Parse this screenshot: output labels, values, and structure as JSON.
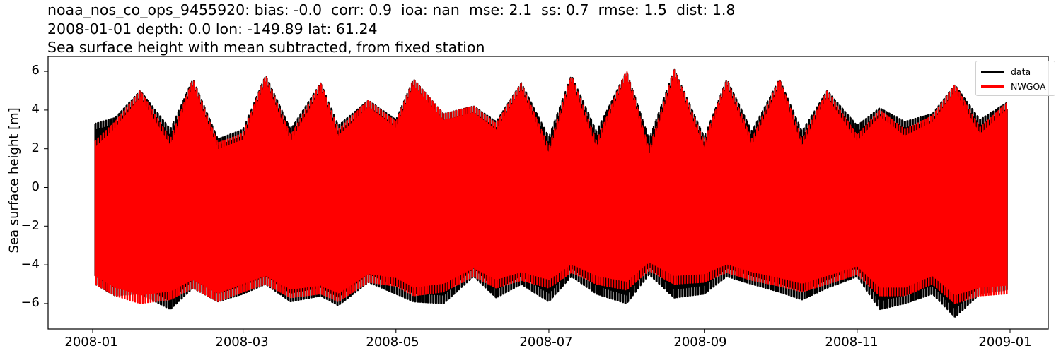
{
  "title": {
    "line1": "noaa_nos_co_ops_9455920: bias: -0.0  corr: 0.9  ioa: nan  mse: 2.1  ss: 0.7  rmse: 1.5  dist: 1.8",
    "line2": "2008-01-01 depth: 0.0 lon: -149.89 lat: 61.24",
    "line3": "Sea surface height with mean subtracted, from fixed station"
  },
  "axes": {
    "ylabel": "Sea surface height [m]",
    "yticks": [
      "6",
      "4",
      "2",
      "0",
      "−2",
      "−4",
      "−6"
    ],
    "xticks": [
      "2008-01",
      "2008-03",
      "2008-05",
      "2008-07",
      "2008-09",
      "2008-11",
      "2009-01"
    ]
  },
  "legend": {
    "items": [
      {
        "label": "data",
        "color": "#000000"
      },
      {
        "label": "NWGOA",
        "color": "#ff0000"
      }
    ]
  },
  "chart_data": {
    "type": "line",
    "title": "noaa_nos_co_ops_9455920: bias: -0.0  corr: 0.9  ioa: nan  mse: 2.1  ss: 0.7  rmse: 1.5  dist: 1.8 / 2008-01-01 depth: 0.0 lon: -149.89 lat: 61.24 / Sea surface height with mean subtracted, from fixed station",
    "xlabel": "",
    "ylabel": "Sea surface height [m]",
    "xlim": [
      "2007-12-15",
      "2009-01-15"
    ],
    "ylim": [
      -7.2,
      6.7
    ],
    "yticks": [
      -6,
      -4,
      -2,
      0,
      2,
      4,
      6
    ],
    "xticks": [
      "2008-01",
      "2008-03",
      "2008-05",
      "2008-07",
      "2008-09",
      "2008-11",
      "2009-01"
    ],
    "grid": false,
    "legend_position": "upper right",
    "x_dates_envelope": [
      "2008-01-02",
      "2008-01-10",
      "2008-01-20",
      "2008-02-01",
      "2008-02-10",
      "2008-02-20",
      "2008-03-01",
      "2008-03-10",
      "2008-03-20",
      "2008-04-01",
      "2008-04-08",
      "2008-04-20",
      "2008-05-01",
      "2008-05-08",
      "2008-05-20",
      "2008-06-01",
      "2008-06-10",
      "2008-06-20",
      "2008-07-01",
      "2008-07-10",
      "2008-07-20",
      "2008-08-01",
      "2008-08-10",
      "2008-08-20",
      "2008-09-01",
      "2008-09-10",
      "2008-09-20",
      "2008-10-01",
      "2008-10-10",
      "2008-10-20",
      "2008-11-01",
      "2008-11-10",
      "2008-11-20",
      "2008-12-01",
      "2008-12-10",
      "2008-12-20",
      "2008-12-31"
    ],
    "series": [
      {
        "name": "data",
        "color": "#000000",
        "upper_envelope_m": [
          3.3,
          3.6,
          5.0,
          3.0,
          5.6,
          2.5,
          3.0,
          5.8,
          3.0,
          5.4,
          3.2,
          4.5,
          3.5,
          5.6,
          3.8,
          4.2,
          3.4,
          5.4,
          2.6,
          5.8,
          2.9,
          6.0,
          2.5,
          6.1,
          2.6,
          5.6,
          2.9,
          5.6,
          2.9,
          5.0,
          3.2,
          4.1,
          3.4,
          3.8,
          5.3,
          3.5,
          4.4
        ],
        "lower_envelope_m": [
          -5.0,
          -5.6,
          -5.5,
          -6.3,
          -5.2,
          -5.9,
          -5.5,
          -5.0,
          -5.9,
          -5.6,
          -6.1,
          -4.9,
          -5.5,
          -5.9,
          -6.0,
          -4.6,
          -5.7,
          -5.0,
          -5.9,
          -4.6,
          -5.5,
          -6.0,
          -4.5,
          -5.7,
          -5.5,
          -4.6,
          -5.0,
          -5.4,
          -5.8,
          -5.2,
          -4.6,
          -6.3,
          -6.0,
          -5.5,
          -6.7,
          -5.5,
          -5.3
        ]
      },
      {
        "name": "NWGOA",
        "color": "#ff0000",
        "upper_envelope_m": [
          2.4,
          3.4,
          5.0,
          2.5,
          5.6,
          2.3,
          2.8,
          5.8,
          2.7,
          5.4,
          3.0,
          4.5,
          3.4,
          5.6,
          3.8,
          4.2,
          3.3,
          5.4,
          2.1,
          5.8,
          2.4,
          6.1,
          2.0,
          6.1,
          2.4,
          5.6,
          2.5,
          5.6,
          2.5,
          5.0,
          2.7,
          4.0,
          3.0,
          3.7,
          5.3,
          3.1,
          4.4
        ],
        "lower_envelope_m": [
          -5.0,
          -5.6,
          -6.0,
          -5.8,
          -5.2,
          -5.9,
          -5.4,
          -5.0,
          -5.7,
          -5.5,
          -5.9,
          -4.9,
          -5.1,
          -5.6,
          -5.4,
          -4.6,
          -5.2,
          -4.8,
          -5.2,
          -4.4,
          -5.0,
          -5.3,
          -4.3,
          -5.0,
          -4.9,
          -4.4,
          -4.8,
          -5.1,
          -5.4,
          -5.0,
          -4.5,
          -5.6,
          -5.6,
          -5.0,
          -6.0,
          -5.6,
          -5.5
        ]
      }
    ]
  }
}
